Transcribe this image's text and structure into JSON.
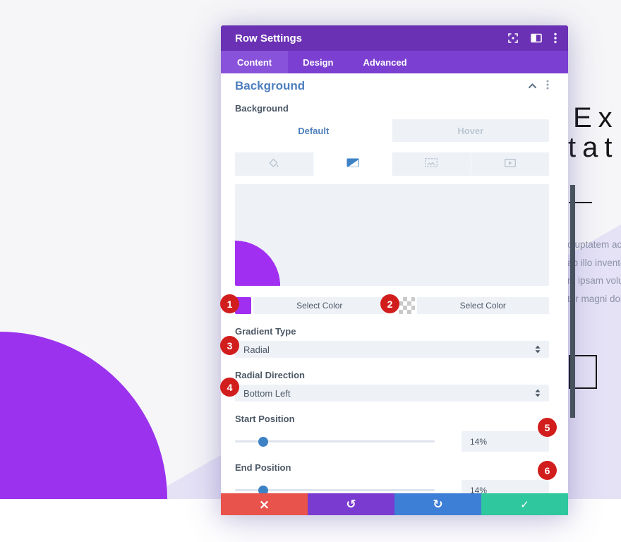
{
  "page": {
    "heading": {
      "line1": "Ex",
      "line2": "tat"
    },
    "paragraph_lines": [
      "oluptatem accusantium dolore",
      "ab illo inventore veritatis",
      "m ipsam voluptatem quia",
      "tur magni dolores eos"
    ]
  },
  "modal": {
    "title": "Row Settings",
    "nav_tabs": [
      {
        "label": "Content"
      },
      {
        "label": "Design"
      },
      {
        "label": "Advanced"
      }
    ],
    "section_title": "Background",
    "background": {
      "label": "Background",
      "state_tabs": [
        {
          "label": "Default"
        },
        {
          "label": "Hover"
        }
      ],
      "select_color_1": "Select Color",
      "select_color_2": "Select Color"
    },
    "gradient_type": {
      "label": "Gradient Type",
      "value": "Radial"
    },
    "radial_direction": {
      "label": "Radial Direction",
      "value": "Bottom Left"
    },
    "start_position": {
      "label": "Start Position",
      "value": "14%",
      "percent": 14
    },
    "end_position": {
      "label": "End Position",
      "value": "14%",
      "percent": 14
    },
    "badges": {
      "b1": "1",
      "b2": "2",
      "b3": "3",
      "b4": "4",
      "b5": "5",
      "b6": "6"
    },
    "footer": {
      "close": "×",
      "undo": "↺",
      "redo": "↻",
      "save": "✓"
    }
  },
  "colors": {
    "header_purple": "#6a31b4",
    "tabbar_purple": "#7b3fd1",
    "active_tab_purple": "#8952da",
    "accent_blue": "#4e7fbe",
    "field_bg": "#eef1f6",
    "swatch_purple": "#a12ff2",
    "page_circle_purple": "#9b33ee",
    "lavender_shape": "#e5e2f6",
    "badge_red": "#d21d1d",
    "slider_thumb_blue": "#3e82c6",
    "footer_red": "#e8534b",
    "footer_purple": "#7a3bd1",
    "footer_blue": "#3d7fd6",
    "footer_green": "#2fc79e"
  }
}
